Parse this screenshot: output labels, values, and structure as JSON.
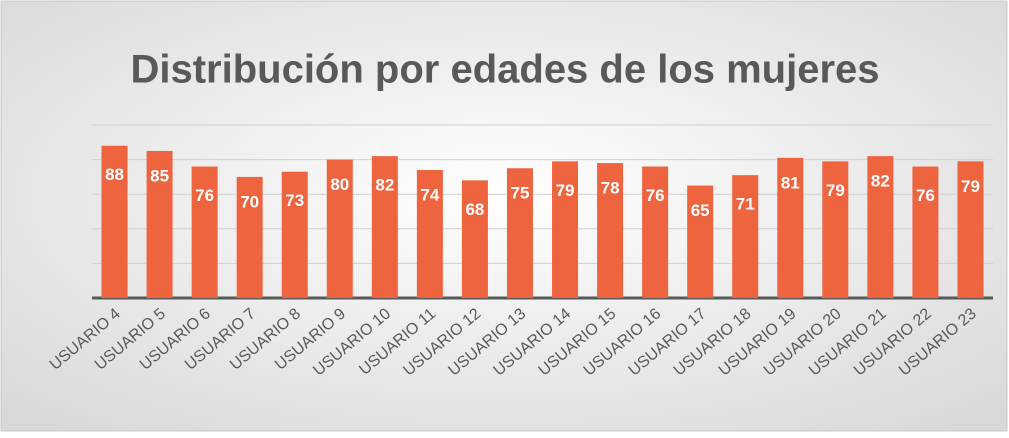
{
  "chart_data": {
    "type": "bar",
    "title": "Distribución por edades de los mujeres",
    "categories": [
      "USUARIO 4",
      "USUARIO 5",
      "USUARIO 6",
      "USUARIO 7",
      "USUARIO 8",
      "USUARIO 9",
      "USUARIO 10",
      "USUARIO 11",
      "USUARIO 12",
      "USUARIO 13",
      "USUARIO 14",
      "USUARIO 15",
      "USUARIO 16",
      "USUARIO 17",
      "USUARIO 18",
      "USUARIO 19",
      "USUARIO 20",
      "USUARIO 21",
      "USUARIO 22",
      "USUARIO 23"
    ],
    "values": [
      88,
      85,
      76,
      70,
      73,
      80,
      82,
      74,
      68,
      75,
      79,
      78,
      76,
      65,
      71,
      81,
      79,
      82,
      76,
      79
    ],
    "color": "#ed643f",
    "ylim": [
      0,
      100
    ],
    "yticks": [
      0,
      20,
      40,
      60,
      80,
      100
    ],
    "grid": true
  }
}
